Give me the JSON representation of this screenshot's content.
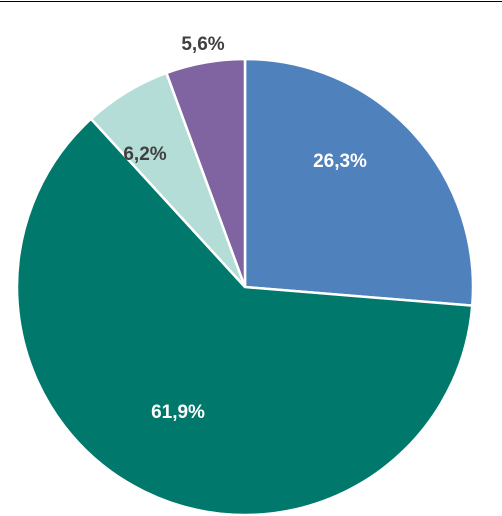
{
  "chart_data": {
    "type": "pie",
    "values": [
      26.3,
      61.9,
      6.2,
      5.6
    ],
    "value_labels": [
      "26,3%",
      "61,9%",
      "6,2%",
      "5,6%"
    ],
    "colors": [
      "#4f81bd",
      "#00786c",
      "#b3ddd6",
      "#8064a2"
    ],
    "label_colors": [
      "#ffffff",
      "#ffffff",
      "#404040",
      "#404040"
    ]
  }
}
